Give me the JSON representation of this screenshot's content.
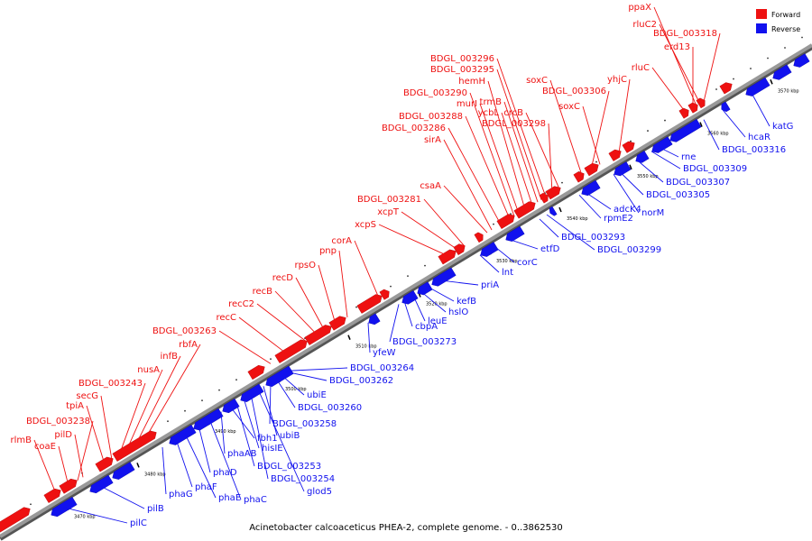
{
  "title": "Acinetobacter calcoaceticus PHEA-2, complete genome. - 0..3862530",
  "legend": {
    "forward_label": "Forward",
    "reverse_label": "Reverse",
    "forward_color": "#ee1111",
    "reverse_color": "#1111ee"
  },
  "backbone_color": "#888888",
  "ticks": [
    "3470 kbp",
    "3480 kbp",
    "3490 kbp",
    "3500 kbp",
    "3510 kbp",
    "3520 kbp",
    "3530 kbp",
    "3540 kbp",
    "3550 kbp",
    "3560 kbp",
    "3570 kbp"
  ],
  "forward_genes": [
    "rlmB",
    "coaE",
    "BDGL_003238",
    "pilD",
    "tpiA",
    "secG",
    "BDGL_003243",
    "nusA",
    "infB",
    "rbfA",
    "BDGL_003263",
    "recC",
    "recC2",
    "recB",
    "recD",
    "rpsO",
    "pnp",
    "corA",
    "xcpS",
    "xcpT",
    "BDGL_003281",
    "csaA",
    "sirA",
    "BDGL_003286",
    "BDGL_003288",
    "BDGL_003290",
    "murI",
    "hemH",
    "ycbL",
    "trmB",
    "BDGL_003295",
    "BDGL_003296",
    "BDGL_003298",
    "crcB",
    "soxC",
    "BDGL_003306",
    "soxC",
    "yhjC",
    "rluC",
    "erd13",
    "rluC2",
    "BDGL_003318",
    "ppaX"
  ],
  "reverse_genes": [
    "pilC",
    "pilB",
    "phaG",
    "phaF",
    "phaE",
    "phaD",
    "phaC",
    "phaAB",
    "fbh1",
    "BDGL_003253",
    "hisIE",
    "BDGL_003254",
    "glod5",
    "ubiB",
    "BDGL_003258",
    "BDGL_003260",
    "ubiE",
    "BDGL_003262",
    "BDGL_003264",
    "yfeW",
    "BDGL_003273",
    "cbpA",
    "leuE",
    "hslO",
    "kefB",
    "priA",
    "lnt",
    "corC",
    "etfD",
    "BDGL_003293",
    "BDGL_003299",
    "rpmE2",
    "adcK4",
    "norM",
    "BDGL_003305",
    "BDGL_003307",
    "BDGL_003309",
    "rne",
    "BDGL_003316",
    "hcaR",
    "katG"
  ]
}
